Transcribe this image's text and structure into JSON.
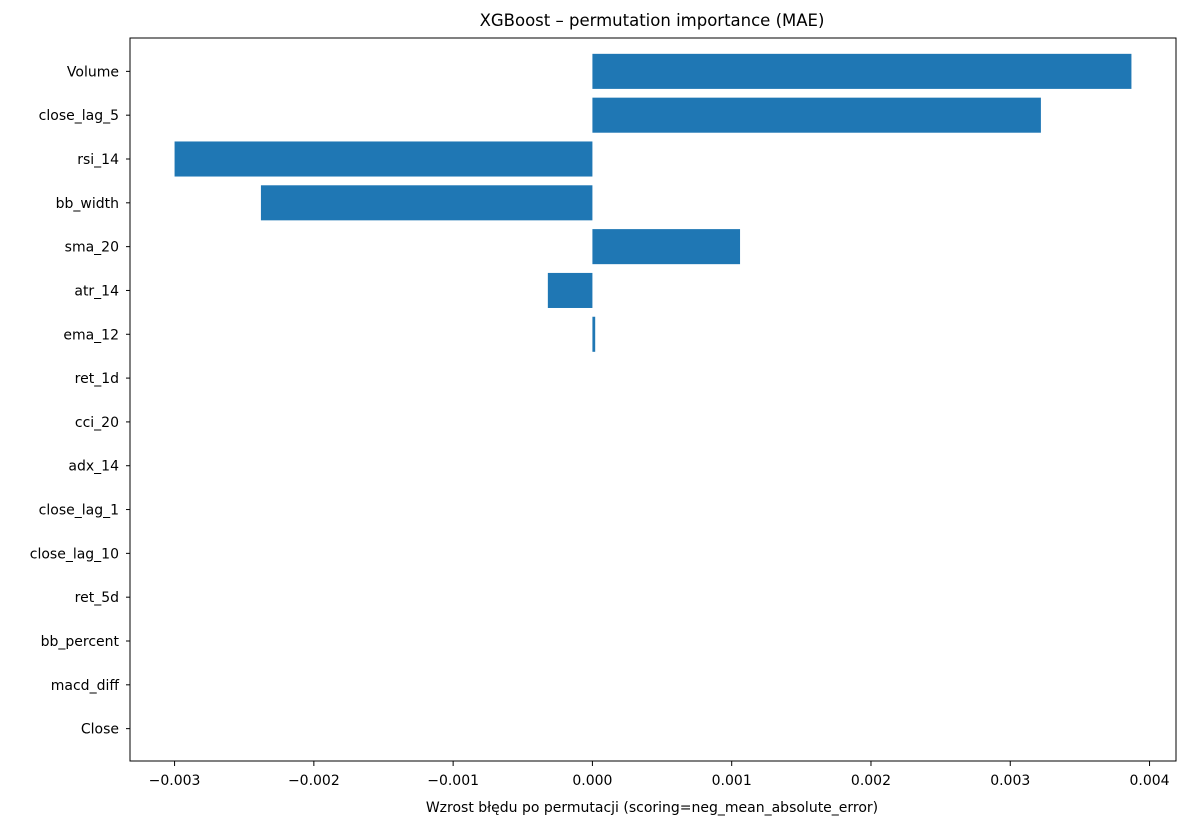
{
  "chart_data": {
    "type": "bar",
    "orientation": "horizontal",
    "title": "XGBoost – permutation importance (MAE)",
    "xlabel": "Wzrost błędu po permutacji (scoring=neg_mean_absolute_error)",
    "ylabel": "",
    "xlim": [
      -0.00332,
      0.00419
    ],
    "xticks": [
      -0.003,
      -0.002,
      -0.001,
      0.0,
      0.001,
      0.002,
      0.003,
      0.004
    ],
    "xtick_labels": [
      "−0.003",
      "−0.002",
      "−0.001",
      "0.000",
      "0.001",
      "0.002",
      "0.003",
      "0.004"
    ],
    "categories": [
      "Volume",
      "close_lag_5",
      "rsi_14",
      "bb_width",
      "sma_20",
      "atr_14",
      "ema_12",
      "ret_1d",
      "cci_20",
      "adx_14",
      "close_lag_1",
      "close_lag_10",
      "ret_5d",
      "bb_percent",
      "macd_diff",
      "Close"
    ],
    "values": [
      0.00387,
      0.00322,
      -0.003,
      -0.00238,
      0.00106,
      -0.00032,
      2e-05,
      0.0,
      0.0,
      0.0,
      0.0,
      0.0,
      0.0,
      0.0,
      0.0,
      0.0
    ],
    "bar_color": "#1f77b4",
    "grid": false,
    "legend": "none"
  }
}
